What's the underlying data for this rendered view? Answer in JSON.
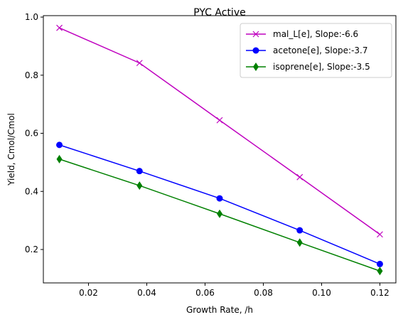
{
  "chart_data": {
    "type": "line",
    "title": "PYC Active",
    "xlabel": "Growth Rate, /h",
    "ylabel": "Yield, Cmol/Cmol",
    "xlim": [
      0.0045,
      0.1255
    ],
    "ylim": [
      0.085,
      1.005
    ],
    "x_ticks": [
      0.02,
      0.04,
      0.06,
      0.08,
      0.1,
      0.12
    ],
    "x_tick_labels": [
      "0.02",
      "0.04",
      "0.06",
      "0.08",
      "0.10",
      "0.12"
    ],
    "y_ticks": [
      0.2,
      0.4,
      0.6,
      0.8,
      1.0
    ],
    "y_tick_labels": [
      "0.2",
      "0.4",
      "0.6",
      "0.8",
      "1.0"
    ],
    "grid": false,
    "legend_position": "top-right",
    "x": [
      0.01,
      0.0375,
      0.065,
      0.0925,
      0.12
    ],
    "series": [
      {
        "name": "mal_L[e], Slope:-6.6",
        "color": "#bf00bf",
        "marker": "x",
        "values": [
          0.963,
          0.842,
          0.645,
          0.449,
          0.252
        ]
      },
      {
        "name": "acetone[e], Slope:-3.7",
        "color": "#0000ff",
        "marker": "circle",
        "values": [
          0.56,
          0.47,
          0.376,
          0.266,
          0.15
        ]
      },
      {
        "name": "isoprene[e], Slope:-3.5",
        "color": "#008000",
        "marker": "diamond",
        "values": [
          0.511,
          0.42,
          0.323,
          0.224,
          0.126
        ]
      }
    ]
  }
}
